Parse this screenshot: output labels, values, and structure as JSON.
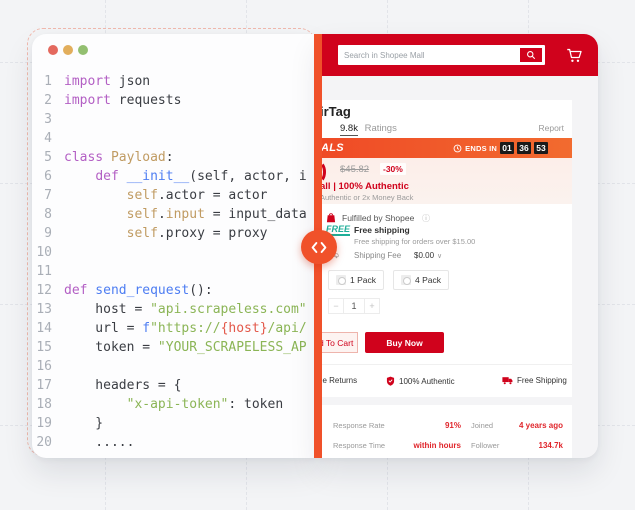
{
  "editor": {
    "traffic_lights": [
      {
        "name": "close",
        "color": "#e4695e"
      },
      {
        "name": "minimize",
        "color": "#e2ae5c"
      },
      {
        "name": "zoom",
        "color": "#93bf70"
      }
    ],
    "code_lines": [
      {
        "n": "1",
        "tokens": [
          {
            "c": "kw",
            "t": "import"
          },
          {
            "c": "pl",
            "t": " json"
          }
        ]
      },
      {
        "n": "2",
        "tokens": [
          {
            "c": "kw",
            "t": "import"
          },
          {
            "c": "pl",
            "t": " requests"
          }
        ]
      },
      {
        "n": "3",
        "tokens": []
      },
      {
        "n": "4",
        "tokens": []
      },
      {
        "n": "5",
        "tokens": [
          {
            "c": "kw",
            "t": "class"
          },
          {
            "c": "attr",
            "t": " Payload"
          },
          {
            "c": "pl",
            "t": ":"
          }
        ]
      },
      {
        "n": "6",
        "tokens": [
          {
            "c": "pl",
            "t": "    "
          },
          {
            "c": "kw",
            "t": "def"
          },
          {
            "c": "fn",
            "t": " __init__"
          },
          {
            "c": "pl",
            "t": "(self, actor, i"
          }
        ]
      },
      {
        "n": "7",
        "tokens": [
          {
            "c": "pl",
            "t": "        "
          },
          {
            "c": "attr",
            "t": "self"
          },
          {
            "c": "pl",
            "t": ".actor = actor"
          }
        ]
      },
      {
        "n": "8",
        "tokens": [
          {
            "c": "pl",
            "t": "        "
          },
          {
            "c": "attr",
            "t": "self"
          },
          {
            "c": "pl",
            "t": "."
          },
          {
            "c": "attr",
            "t": "input"
          },
          {
            "c": "pl",
            "t": " = input_data"
          }
        ]
      },
      {
        "n": "9",
        "tokens": [
          {
            "c": "pl",
            "t": "        "
          },
          {
            "c": "attr",
            "t": "self"
          },
          {
            "c": "pl",
            "t": ".proxy = proxy"
          }
        ]
      },
      {
        "n": "10",
        "tokens": []
      },
      {
        "n": "11",
        "tokens": []
      },
      {
        "n": "12",
        "tokens": [
          {
            "c": "kw",
            "t": "def"
          },
          {
            "c": "fn",
            "t": " send_request"
          },
          {
            "c": "pl",
            "t": "():"
          }
        ]
      },
      {
        "n": "13",
        "tokens": [
          {
            "c": "pl",
            "t": "    host = "
          },
          {
            "c": "str",
            "t": "\"api.scrapeless.com\""
          }
        ]
      },
      {
        "n": "14",
        "tokens": [
          {
            "c": "pl",
            "t": "    url = "
          },
          {
            "c": "fn",
            "t": "f"
          },
          {
            "c": "str",
            "t": "\"https://"
          },
          {
            "c": "br",
            "t": "{host}"
          },
          {
            "c": "str",
            "t": "/api/"
          }
        ]
      },
      {
        "n": "15",
        "tokens": [
          {
            "c": "pl",
            "t": "    token = "
          },
          {
            "c": "str",
            "t": "\"YOUR_SCRAPELESS_AP"
          }
        ]
      },
      {
        "n": "16",
        "tokens": []
      },
      {
        "n": "17",
        "tokens": [
          {
            "c": "pl",
            "t": "    headers = {"
          }
        ]
      },
      {
        "n": "18",
        "tokens": [
          {
            "c": "pl",
            "t": "        "
          },
          {
            "c": "str",
            "t": "\"x-api-token\""
          },
          {
            "c": "pl",
            "t": ": token"
          }
        ]
      },
      {
        "n": "19",
        "tokens": [
          {
            "c": "pl",
            "t": "    }"
          }
        ]
      },
      {
        "n": "20",
        "tokens": [
          {
            "c": "pl",
            "t": "    ....."
          }
        ]
      }
    ]
  },
  "shopee": {
    "header": {
      "search_placeholder": "Search in Shopee Mall"
    },
    "product": {
      "title_fragment": "irTag",
      "ratings_count": "9.8k",
      "ratings_label": "Ratings",
      "report_label": "Report"
    },
    "deals": {
      "label_fragment": "ALS",
      "ends_in_label": "ENDS IN",
      "countdown": [
        "01",
        "36",
        "53"
      ]
    },
    "price": {
      "original_price": "$45.82",
      "discount": "-30%",
      "mall_line_fragment": "all | 100% Authentic",
      "guarantee_line": "Authentic or 2x Money Back"
    },
    "fulfillment": {
      "fulfilled_by": "Fulfilled by Shopee",
      "info_icon": "ⓘ",
      "free_badge": "FREE",
      "free_shipping_title": "Free shipping",
      "free_shipping_desc": "Free shipping for orders over $15.00",
      "shipping_fee_label": "Shipping Fee",
      "shipping_fee_value": "$0.00",
      "caret": "∨"
    },
    "variants": [
      {
        "label": "1 Pack"
      },
      {
        "label": "4 Pack"
      }
    ],
    "quantity": {
      "minus": "−",
      "value": "1",
      "plus": "+"
    },
    "actions": {
      "add_to_cart_fragment": "d To Cart",
      "buy_now": "Buy Now"
    },
    "features": [
      {
        "label": "ee Returns"
      },
      {
        "label": "100% Authentic"
      },
      {
        "label": "Free Shipping"
      }
    ],
    "seller_stats": {
      "rows": [
        {
          "label": "Response Rate",
          "value": "91%"
        },
        {
          "label": "Joined",
          "value": "4 years ago"
        },
        {
          "label": "Response Time",
          "value": "within hours"
        },
        {
          "label": "Follower",
          "value": "134.7k"
        }
      ]
    }
  },
  "colors": {
    "shopee_red": "#d0021c",
    "divider_orange": "#f0512a",
    "deal_orange": "#f04f27",
    "teal": "#1fae98"
  }
}
